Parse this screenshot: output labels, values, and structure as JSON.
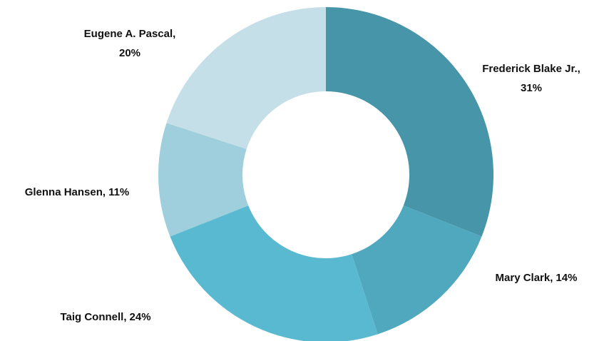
{
  "chart_data": {
    "type": "donut",
    "categories": [
      "Frederick Blake Jr.",
      "Mary Clark",
      "Taig Connell",
      "Glenna Hansen",
      "Eugene A. Pascal"
    ],
    "values": [
      31,
      14,
      24,
      11,
      20
    ],
    "value_labels": [
      "31%",
      "14%",
      "24%",
      "11%",
      "20%"
    ],
    "label_separator": ",",
    "colors": [
      "#4695a8",
      "#4fa8bd",
      "#59b9d1",
      "#9fcfdd",
      "#c5dfe8"
    ]
  }
}
